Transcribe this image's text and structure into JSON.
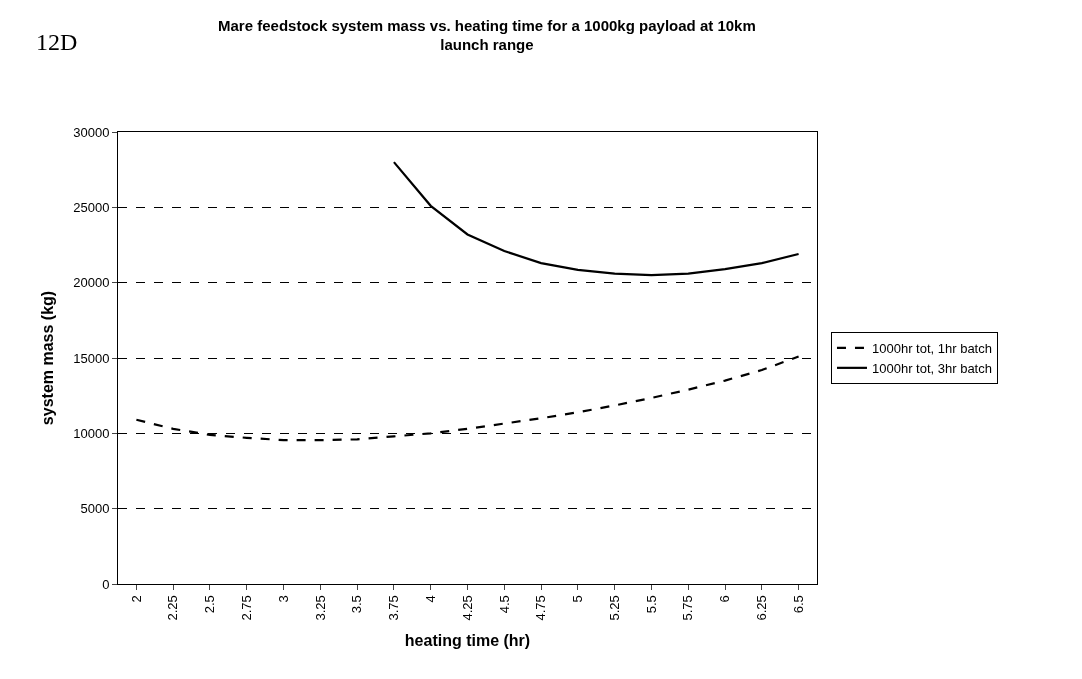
{
  "chart_data": {
    "type": "line",
    "title": "Mare feedstock system mass vs. heating time for a 1000kg payload at 10km\nlaunch range",
    "xlabel": "heating time (hr)",
    "ylabel": "system mass (kg)",
    "annotations": [
      "12D"
    ],
    "categories": [
      "2",
      "2.25",
      "2.5",
      "2.75",
      "3",
      "3.25",
      "3.5",
      "3.75",
      "4",
      "4.25",
      "4.5",
      "4.75",
      "5",
      "5.25",
      "5.5",
      "5.75",
      "6",
      "6.25",
      "6.5"
    ],
    "series": [
      {
        "name": "1000hr tot, 1hr batch",
        "color": "#000000",
        "line_style": "dashed",
        "values": [
          10900,
          10300,
          9900,
          9700,
          9550,
          9550,
          9600,
          9800,
          10000,
          10300,
          10650,
          11000,
          11400,
          11850,
          12350,
          12900,
          13500,
          14200,
          15100
        ]
      },
      {
        "name": "1000hr tot, 3hr batch",
        "color": "#000000",
        "line_style": "solid",
        "values": [
          null,
          null,
          null,
          null,
          null,
          null,
          null,
          28000,
          25100,
          23200,
          22100,
          21300,
          20850,
          20600,
          20500,
          20600,
          20900,
          21300,
          21900
        ]
      }
    ],
    "ylim": [
      0,
      30000
    ],
    "yticks": [
      0,
      5000,
      10000,
      15000,
      20000,
      25000,
      30000
    ],
    "grid": "y",
    "legend": "right",
    "marker": "none"
  }
}
